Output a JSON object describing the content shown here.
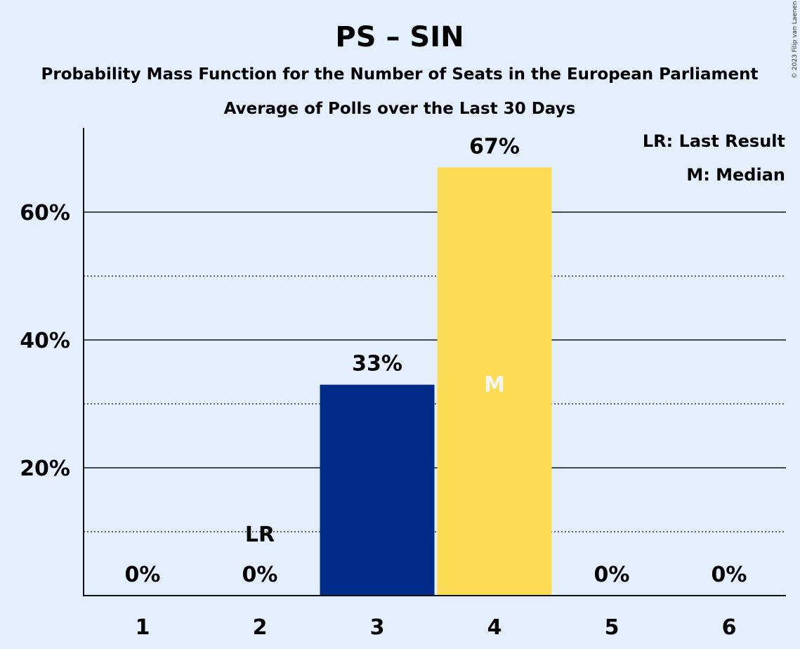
{
  "chart_data": {
    "type": "bar",
    "title": "PS – SIN",
    "subtitle": "Probability Mass Function for the Number of Seats in the European Parliament",
    "subtitle2": "Average of Polls over the Last 30 Days",
    "categories": [
      "1",
      "2",
      "3",
      "4",
      "5",
      "6"
    ],
    "values": [
      0,
      0,
      33,
      67,
      0,
      0
    ],
    "value_labels": [
      "0%",
      "0%",
      "33%",
      "67%",
      "0%",
      "0%"
    ],
    "ylim": [
      0,
      73
    ],
    "yticks": [
      20,
      40,
      60
    ],
    "ytick_labels": [
      "20%",
      "40%",
      "60%"
    ],
    "minor_gridlines": [
      10,
      30,
      50
    ],
    "last_result_category": "2",
    "last_result_marker": "LR",
    "median_category": "4",
    "median_marker": "M",
    "legend": [
      "LR: Last Result",
      "M: Median"
    ],
    "legend_position": "top-right",
    "bar_colors": [
      "#002a87",
      "#002a87",
      "#002a87",
      "#fddc55",
      "#002a87",
      "#002a87"
    ],
    "median_marker_color": "#f5f5f5",
    "copyright": "© 2023 Filip van Laenen"
  }
}
